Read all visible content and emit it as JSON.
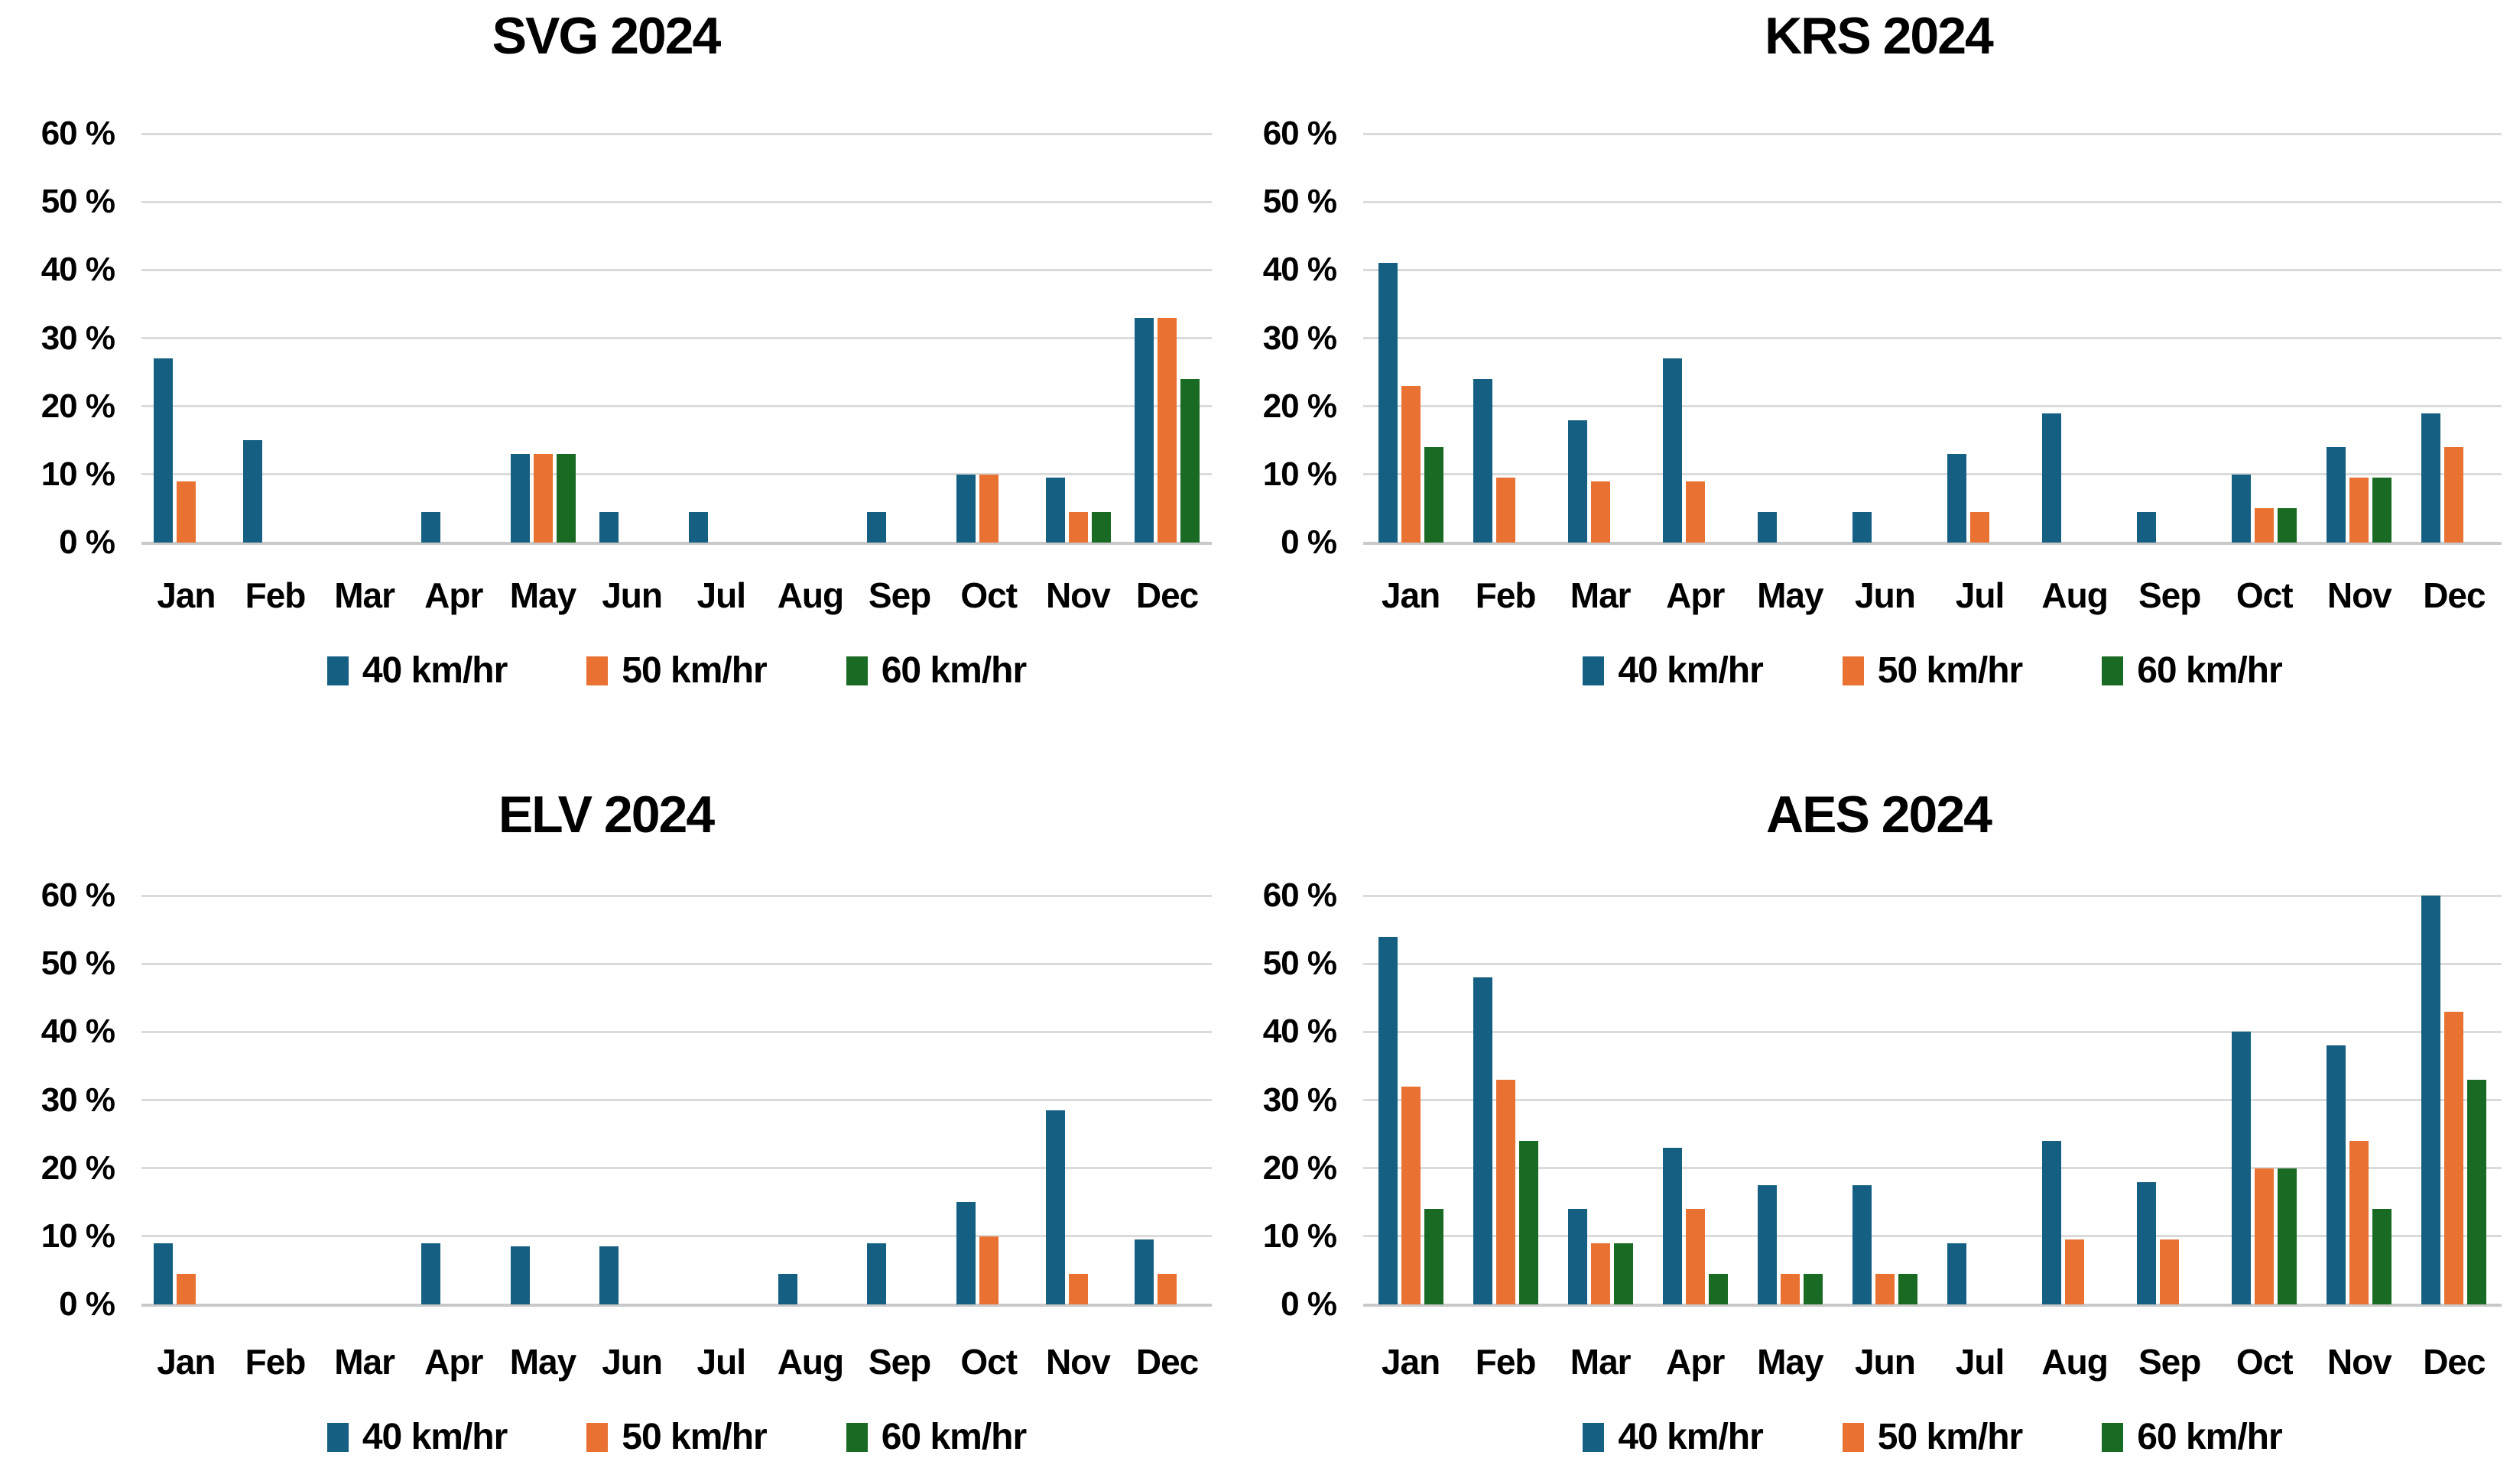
{
  "page": {
    "background": "#ffffff"
  },
  "colors": {
    "series_40": "#156082",
    "series_50": "#E97132",
    "series_60": "#196B24",
    "gridline": "#DBDBDB",
    "axis_line": "#C9C9C9",
    "text": "#000000"
  },
  "months": [
    "Jan",
    "Feb",
    "Mar",
    "Apr",
    "May",
    "Jun",
    "Jul",
    "Aug",
    "Sep",
    "Oct",
    "Nov",
    "Dec"
  ],
  "y_axis": {
    "tick_labels": [
      "60 %",
      "50 %",
      "40 %",
      "30 %",
      "20 %",
      "10 %",
      "0 %"
    ],
    "min": 0,
    "max": 60,
    "step": 10,
    "unit": "%"
  },
  "legend": {
    "items": [
      {
        "key": "40kmhr",
        "label": "40 km/hr",
        "color": "#156082"
      },
      {
        "key": "50kmhr",
        "label": "50 km/hr",
        "color": "#E97132"
      },
      {
        "key": "60kmhr",
        "label": "60 km/hr",
        "color": "#196B24"
      }
    ]
  },
  "chart_data": [
    {
      "type": "bar",
      "title": "SVG 2024",
      "categories": [
        "Jan",
        "Feb",
        "Mar",
        "Apr",
        "May",
        "Jun",
        "Jul",
        "Aug",
        "Sep",
        "Oct",
        "Nov",
        "Dec"
      ],
      "ylabel": "%",
      "ylim": [
        0,
        60
      ],
      "grid": true,
      "legend_position": "bottom",
      "series": [
        {
          "name": "40 km/hr",
          "key": "40kmhr",
          "color": "#156082",
          "values": [
            27,
            15,
            0,
            4.5,
            13,
            4.5,
            4.5,
            0,
            4.5,
            10,
            9.5,
            33
          ]
        },
        {
          "name": "50 km/hr",
          "key": "50kmhr",
          "color": "#E97132",
          "values": [
            9,
            0,
            0,
            0,
            13,
            0,
            0,
            0,
            0,
            10,
            4.5,
            33
          ]
        },
        {
          "name": "60 km/hr",
          "key": "60kmhr",
          "color": "#196B24",
          "values": [
            0,
            0,
            0,
            0,
            13,
            0,
            0,
            0,
            0,
            0,
            4.5,
            24
          ]
        }
      ]
    },
    {
      "type": "bar",
      "title": "KRS 2024",
      "categories": [
        "Jan",
        "Feb",
        "Mar",
        "Apr",
        "May",
        "Jun",
        "Jul",
        "Aug",
        "Sep",
        "Oct",
        "Nov",
        "Dec"
      ],
      "ylabel": "%",
      "ylim": [
        0,
        60
      ],
      "grid": true,
      "legend_position": "bottom",
      "series": [
        {
          "name": "40 km/hr",
          "key": "40kmhr",
          "color": "#156082",
          "values": [
            41,
            24,
            18,
            27,
            4.5,
            4.5,
            13,
            19,
            4.5,
            10,
            14,
            19
          ]
        },
        {
          "name": "50 km/hr",
          "key": "50kmhr",
          "color": "#E97132",
          "values": [
            23,
            9.5,
            9,
            9,
            0,
            0,
            4.5,
            0,
            0,
            5,
            9.5,
            14
          ]
        },
        {
          "name": "60 km/hr",
          "key": "60kmhr",
          "color": "#196B24",
          "values": [
            14,
            0,
            0,
            0,
            0,
            0,
            0,
            0,
            0,
            5,
            9.5,
            0
          ]
        }
      ]
    },
    {
      "type": "bar",
      "title": "ELV 2024",
      "categories": [
        "Jan",
        "Feb",
        "Mar",
        "Apr",
        "May",
        "Jun",
        "Jul",
        "Aug",
        "Sep",
        "Oct",
        "Nov",
        "Dec"
      ],
      "ylabel": "%",
      "ylim": [
        0,
        60
      ],
      "grid": true,
      "legend_position": "bottom",
      "series": [
        {
          "name": "40 km/hr",
          "key": "40kmhr",
          "color": "#156082",
          "values": [
            9,
            0,
            0,
            9,
            8.5,
            8.5,
            0,
            4.5,
            9,
            15,
            28.5,
            9.5
          ]
        },
        {
          "name": "50 km/hr",
          "key": "50kmhr",
          "color": "#E97132",
          "values": [
            4.5,
            0,
            0,
            0,
            0,
            0,
            0,
            0,
            0,
            10,
            4.5,
            4.5
          ]
        },
        {
          "name": "60 km/hr",
          "key": "60kmhr",
          "color": "#196B24",
          "values": [
            0,
            0,
            0,
            0,
            0,
            0,
            0,
            0,
            0,
            0,
            0,
            0
          ]
        }
      ]
    },
    {
      "type": "bar",
      "title": "AES 2024",
      "categories": [
        "Jan",
        "Feb",
        "Mar",
        "Apr",
        "May",
        "Jun",
        "Jul",
        "Aug",
        "Sep",
        "Oct",
        "Nov",
        "Dec"
      ],
      "ylabel": "%",
      "ylim": [
        0,
        60
      ],
      "grid": true,
      "legend_position": "bottom",
      "series": [
        {
          "name": "40 km/hr",
          "key": "40kmhr",
          "color": "#156082",
          "values": [
            54,
            48,
            14,
            23,
            17.5,
            17.5,
            9,
            24,
            18,
            40,
            38,
            60
          ]
        },
        {
          "name": "50 km/hr",
          "key": "50kmhr",
          "color": "#E97132",
          "values": [
            32,
            33,
            9,
            14,
            4.5,
            4.5,
            0,
            9.5,
            9.5,
            20,
            24,
            43
          ]
        },
        {
          "name": "60 km/hr",
          "key": "60kmhr",
          "color": "#196B24",
          "values": [
            14,
            24,
            9,
            4.5,
            4.5,
            4.5,
            0,
            0,
            0,
            20,
            14,
            33
          ]
        }
      ]
    }
  ]
}
